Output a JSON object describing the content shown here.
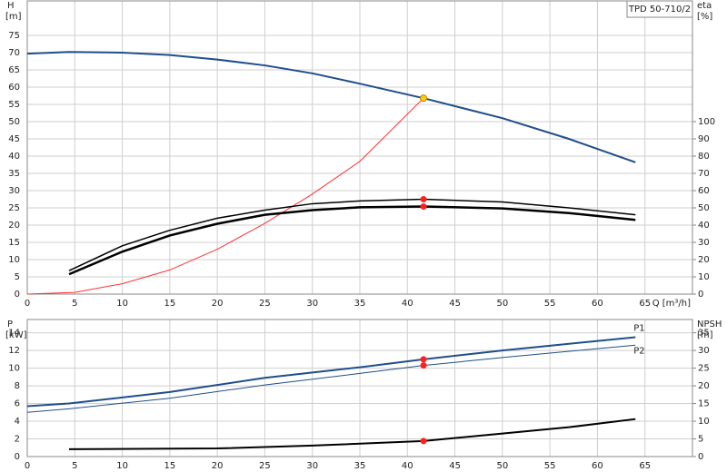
{
  "chart_data": [
    {
      "type": "line",
      "legend_box": "TPD 50-710/2",
      "grid": true,
      "x_label": "Q [m³/h]",
      "y_label": "H",
      "y_unit": "[m]",
      "y2_label": "eta",
      "y2_unit": "[%]",
      "xlim": [
        0,
        70
      ],
      "xticks": [
        0,
        5,
        10,
        15,
        20,
        25,
        30,
        35,
        40,
        45,
        50,
        55,
        60,
        65
      ],
      "ylim": [
        0,
        85
      ],
      "yticks": [
        0,
        5,
        10,
        15,
        20,
        25,
        30,
        35,
        40,
        45,
        50,
        55,
        60,
        65,
        70,
        75
      ],
      "y2lim": [
        0,
        170
      ],
      "y2ticks": [
        0,
        10,
        20,
        30,
        40,
        50,
        60,
        70,
        80,
        90,
        100
      ],
      "series": [
        {
          "color": "#1f4e8c",
          "width": 2,
          "x": [
            0,
            4.4,
            10,
            15,
            20,
            25,
            30,
            35,
            41.7,
            50,
            57,
            64
          ],
          "values": [
            69.7,
            70.2,
            70,
            69.3,
            68,
            66.3,
            64,
            61,
            56.8,
            51,
            45,
            38.2
          ]
        },
        {
          "color": "#ff3030",
          "width": 1,
          "x": [
            0,
            5,
            10,
            15,
            20,
            25,
            30,
            35,
            41.7
          ],
          "values": [
            0,
            0.5,
            3,
            7,
            13,
            20.5,
            29,
            38.5,
            56.8
          ]
        },
        {
          "color": "#000000",
          "width": 1.5,
          "axis": "y2",
          "x": [
            4.4,
            10,
            15,
            20,
            25,
            30,
            35,
            41.7,
            50,
            57,
            64
          ],
          "values": [
            13.6,
            28,
            37,
            44,
            48.7,
            52.4,
            54,
            55,
            53.4,
            50,
            46
          ]
        },
        {
          "color": "#000000",
          "width": 2.5,
          "axis": "y2",
          "x": [
            4.4,
            10,
            15,
            20,
            25,
            30,
            35,
            41.7,
            50,
            57,
            64
          ],
          "values": [
            11.5,
            24.6,
            34,
            40.8,
            46,
            48.7,
            50.3,
            50.8,
            49.7,
            47,
            43
          ]
        },
        {
          "color": "#ffcc00",
          "marker": true,
          "x": [
            41.7
          ],
          "values": [
            56.8
          ]
        },
        {
          "color": "#ff2020",
          "marker": true,
          "axis": "y2",
          "x": [
            41.7,
            41.7
          ],
          "values": [
            55,
            50.8
          ]
        }
      ]
    },
    {
      "type": "line",
      "grid": true,
      "y_label": "P",
      "y_unit": "[kW]",
      "y2_label": "NPSH",
      "y2_unit": "[m]",
      "xlim": [
        0,
        70
      ],
      "xticks": [
        0,
        5,
        10,
        15,
        20,
        25,
        30,
        35,
        40,
        45,
        50,
        55,
        60,
        65
      ],
      "ylim": [
        0,
        15.5
      ],
      "yticks": [
        0,
        2,
        4,
        6,
        8,
        10,
        12,
        14
      ],
      "y2lim": [
        0,
        38.75
      ],
      "y2ticks": [
        0,
        5,
        10,
        15,
        20,
        25,
        30,
        35
      ],
      "series": [
        {
          "name": "P1",
          "color": "#1f4e8c",
          "width": 2,
          "x": [
            0,
            4.4,
            15,
            25,
            35,
            41.7,
            50,
            64
          ],
          "values": [
            5.7,
            6.0,
            7.3,
            8.9,
            10.1,
            11.0,
            12.0,
            13.5
          ]
        },
        {
          "name": "P2",
          "color": "#1f4e8c",
          "width": 1,
          "x": [
            0,
            4.4,
            15,
            25,
            35,
            41.7,
            50,
            64
          ],
          "values": [
            5.0,
            5.4,
            6.6,
            8.1,
            9.4,
            10.3,
            11.2,
            12.6
          ]
        },
        {
          "color": "#000000",
          "width": 2,
          "axis": "y2",
          "x": [
            4.4,
            20,
            30,
            41.7,
            50,
            57,
            64
          ],
          "values": [
            2.1,
            2.3,
            3.1,
            4.4,
            6.5,
            8.3,
            10.6
          ]
        },
        {
          "color": "#ff2020",
          "marker": true,
          "x": [
            41.7,
            41.7
          ],
          "values": [
            11.0,
            10.3
          ]
        },
        {
          "color": "#ff2020",
          "marker": true,
          "axis": "y2",
          "x": [
            41.7
          ],
          "values": [
            4.4
          ]
        }
      ]
    }
  ]
}
